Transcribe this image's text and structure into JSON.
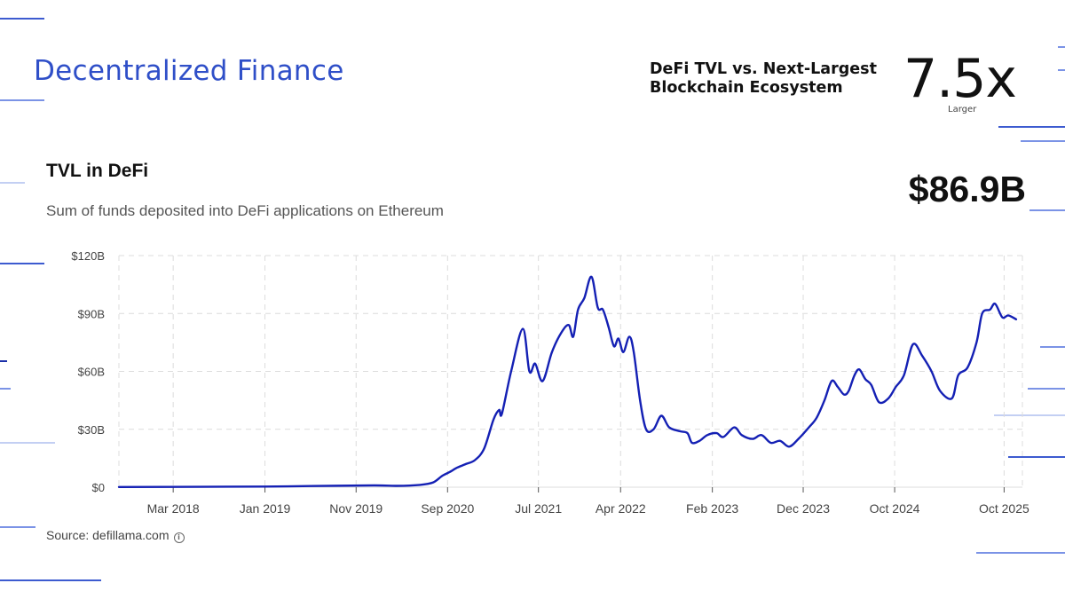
{
  "colors": {
    "accent": "#2F4FC8",
    "line": "#1420B4",
    "grid": "#DCDCDC",
    "deco": [
      "#3D5BD0",
      "#7B93E6",
      "#C3CFF3"
    ]
  },
  "header": {
    "section_title": "Decentralized Finance",
    "kpi_label": "DeFi TVL vs. Next-Largest Blockchain Ecosystem",
    "kpi_value": "7.5x",
    "kpi_sub": "Larger"
  },
  "chart_header": {
    "title": "TVL in DeFi",
    "subtitle": "Sum of funds deposited into DeFi applications on Ethereum",
    "headline_value": "$86.9B"
  },
  "footer": {
    "source": "Source: defillama.com",
    "info_icon": "info-icon"
  },
  "chart_data": {
    "type": "line",
    "title": "TVL in DeFi",
    "xlabel": "",
    "ylabel": "",
    "ylim": [
      0,
      120
    ],
    "yticks": [
      0,
      30,
      60,
      90,
      120
    ],
    "ytick_labels": [
      "$0",
      "$30B",
      "$60B",
      "$90B",
      "$120B"
    ],
    "xlim": [
      "2017-09-01",
      "2025-12-01"
    ],
    "xticks": [
      "2018-03-01",
      "2019-01-01",
      "2019-11-01",
      "2020-09-01",
      "2021-07-01",
      "2022-04-01",
      "2023-02-01",
      "2023-12-01",
      "2024-10-01",
      "2025-10-01"
    ],
    "xtick_labels": [
      "Mar 2018",
      "Jan 2019",
      "Nov 2019",
      "Sep 2020",
      "Jul 2021",
      "Apr 2022",
      "Feb 2023",
      "Dec 2023",
      "Oct 2024",
      "Oct 2025"
    ],
    "grid": true,
    "series": [
      {
        "values": [
          [
            "2017-09-01",
            0.1
          ],
          [
            "2018-06-01",
            0.2
          ],
          [
            "2019-01-01",
            0.3
          ],
          [
            "2019-06-01",
            0.6
          ],
          [
            "2020-01-01",
            0.9
          ],
          [
            "2020-03-15",
            0.7
          ],
          [
            "2020-06-01",
            1.2
          ],
          [
            "2020-07-15",
            2.5
          ],
          [
            "2020-08-15",
            6
          ],
          [
            "2020-09-10",
            8
          ],
          [
            "2020-10-01",
            10
          ],
          [
            "2020-11-01",
            12
          ],
          [
            "2020-12-01",
            14
          ],
          [
            "2021-01-01",
            20
          ],
          [
            "2021-02-01",
            35
          ],
          [
            "2021-02-20",
            40
          ],
          [
            "2021-03-01",
            38
          ],
          [
            "2021-04-01",
            60
          ],
          [
            "2021-05-10",
            82
          ],
          [
            "2021-06-01",
            60
          ],
          [
            "2021-06-20",
            64
          ],
          [
            "2021-07-15",
            55
          ],
          [
            "2021-08-15",
            70
          ],
          [
            "2021-09-15",
            80
          ],
          [
            "2021-10-10",
            84
          ],
          [
            "2021-10-25",
            78
          ],
          [
            "2021-11-10",
            92
          ],
          [
            "2021-12-01",
            98
          ],
          [
            "2021-12-25",
            109
          ],
          [
            "2022-01-15",
            93
          ],
          [
            "2022-02-01",
            92
          ],
          [
            "2022-02-20",
            83
          ],
          [
            "2022-03-10",
            73
          ],
          [
            "2022-03-25",
            77
          ],
          [
            "2022-04-10",
            70
          ],
          [
            "2022-04-30",
            78
          ],
          [
            "2022-05-15",
            70
          ],
          [
            "2022-06-05",
            45
          ],
          [
            "2022-06-25",
            30
          ],
          [
            "2022-07-20",
            30
          ],
          [
            "2022-08-15",
            37
          ],
          [
            "2022-09-10",
            31
          ],
          [
            "2022-10-15",
            29
          ],
          [
            "2022-11-10",
            28
          ],
          [
            "2022-11-25",
            23
          ],
          [
            "2022-12-20",
            24
          ],
          [
            "2023-01-15",
            27
          ],
          [
            "2023-02-15",
            28
          ],
          [
            "2023-03-10",
            26
          ],
          [
            "2023-04-15",
            31
          ],
          [
            "2023-05-10",
            27
          ],
          [
            "2023-06-15",
            25
          ],
          [
            "2023-07-15",
            27
          ],
          [
            "2023-08-15",
            23
          ],
          [
            "2023-09-15",
            24
          ],
          [
            "2023-10-15",
            21
          ],
          [
            "2023-11-15",
            25
          ],
          [
            "2023-12-20",
            31
          ],
          [
            "2024-01-15",
            36
          ],
          [
            "2024-02-10",
            45
          ],
          [
            "2024-03-05",
            55
          ],
          [
            "2024-03-25",
            52
          ],
          [
            "2024-04-15",
            48
          ],
          [
            "2024-05-01",
            50
          ],
          [
            "2024-05-20",
            58
          ],
          [
            "2024-06-05",
            61
          ],
          [
            "2024-06-25",
            56
          ],
          [
            "2024-07-15",
            53
          ],
          [
            "2024-08-10",
            44
          ],
          [
            "2024-09-10",
            46
          ],
          [
            "2024-10-05",
            52
          ],
          [
            "2024-11-01",
            58
          ],
          [
            "2024-12-01",
            74
          ],
          [
            "2025-01-01",
            68
          ],
          [
            "2025-02-01",
            60
          ],
          [
            "2025-03-01",
            50
          ],
          [
            "2025-04-10",
            46
          ],
          [
            "2025-05-01",
            58
          ],
          [
            "2025-06-01",
            62
          ],
          [
            "2025-07-01",
            75
          ],
          [
            "2025-07-20",
            90
          ],
          [
            "2025-08-15",
            92
          ],
          [
            "2025-09-01",
            95
          ],
          [
            "2025-09-25",
            88
          ],
          [
            "2025-10-15",
            89
          ],
          [
            "2025-11-10",
            87
          ]
        ]
      }
    ]
  }
}
